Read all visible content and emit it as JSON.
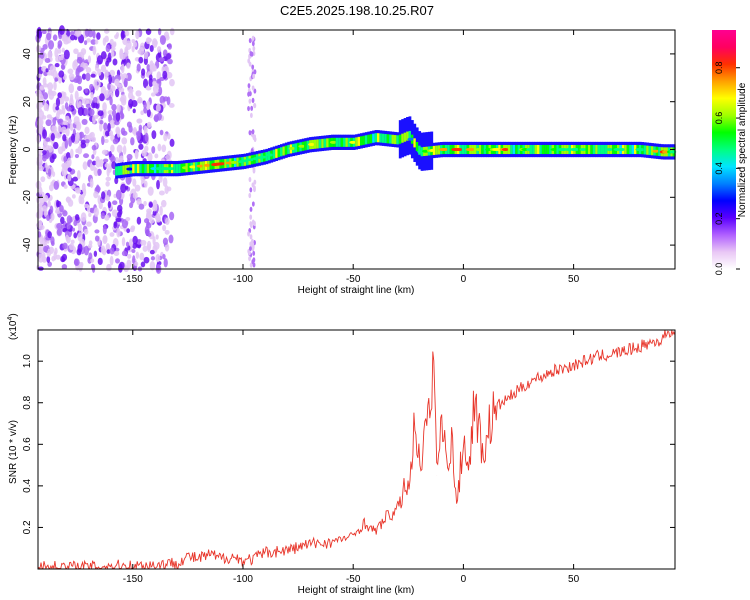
{
  "title": "C2E5.2025.198.10.25.R07",
  "colorbar": {
    "label": "Normalized spectral amplitude",
    "ticks": [
      0.0,
      0.2,
      0.4,
      0.6,
      0.8
    ],
    "tick_labels": [
      "0.0",
      "0.2",
      "0.4",
      "0.6",
      "0.8"
    ],
    "range": [
      0.0,
      0.95
    ],
    "colors": [
      "#ffffff",
      "#e9c7f5",
      "#b060ff",
      "#5a00ff",
      "#0000ff",
      "#0080ff",
      "#00e5ff",
      "#00ff80",
      "#00ff00",
      "#a0ff00",
      "#ffff00",
      "#ffa000",
      "#ff3000",
      "#ff0060",
      "#ff0090"
    ]
  },
  "chart_data": [
    {
      "type": "heatmap",
      "title": "C2E5.2025.198.10.25.R07",
      "xlabel": "Height of straight line (km)",
      "ylabel": "Frequency (Hz)",
      "xlim": [
        -193,
        96
      ],
      "ylim": [
        -50,
        50
      ],
      "x_ticks": [
        -150,
        -100,
        -50,
        0,
        50
      ],
      "x_tick_labels": [
        "-150",
        "-100",
        "-50",
        "0",
        "50"
      ],
      "y_ticks": [
        -40,
        -20,
        0,
        20,
        40
      ],
      "y_tick_labels": [
        "-40",
        "-20",
        "0",
        "20",
        "40"
      ],
      "ridge": {
        "description_source": "dominant frequency band (Hz) vs height (km)",
        "x": [
          -158,
          -150,
          -140,
          -130,
          -120,
          -110,
          -100,
          -90,
          -80,
          -70,
          -60,
          -50,
          -40,
          -30,
          -25,
          -20,
          -10,
          0,
          10,
          20,
          30,
          40,
          50,
          60,
          70,
          80,
          90,
          95
        ],
        "y": [
          -9,
          -8,
          -8,
          -8,
          -7,
          -6,
          -5,
          -3,
          0,
          2,
          3,
          3,
          5,
          4,
          6,
          -1,
          0,
          0,
          0,
          0,
          0,
          0,
          0,
          0,
          0,
          0,
          -1,
          -1
        ],
        "peak_amplitude": [
          0.15,
          0.3,
          0.45,
          0.55,
          0.75,
          0.9,
          0.5,
          0.5,
          0.6,
          0.7,
          0.6,
          0.75,
          0.5,
          0.4,
          0.3,
          0.5,
          0.8,
          0.9,
          0.55,
          0.85,
          0.5,
          0.55,
          0.5,
          0.55,
          0.5,
          0.5,
          0.9,
          0.5
        ]
      },
      "noise_region_x": [
        -193,
        -135
      ],
      "noise_column_x": -96
    },
    {
      "type": "line",
      "xlabel": "Height of straight line (km)",
      "ylabel": "SNR (10 * v/v)",
      "y_exponent": "(x10",
      "y_exponent_power": "4",
      "y_exponent_close": ")",
      "xlim": [
        -193,
        96
      ],
      "ylim": [
        0,
        1.15
      ],
      "x_ticks": [
        -150,
        -100,
        -50,
        0,
        50
      ],
      "x_tick_labels": [
        "-150",
        "-100",
        "-50",
        "0",
        "50"
      ],
      "y_ticks": [
        0.2,
        0.4,
        0.6,
        0.8,
        1.0
      ],
      "y_tick_labels": [
        "0.2",
        "0.4",
        "0.6",
        "0.8",
        "1.0"
      ],
      "series": [
        {
          "color": "#e8362b",
          "x": [
            -193,
            -180,
            -170,
            -160,
            -150,
            -140,
            -130,
            -125,
            -120,
            -115,
            -110,
            -105,
            -100,
            -95,
            -90,
            -80,
            -70,
            -60,
            -50,
            -45,
            -40,
            -35,
            -30,
            -28,
            -25,
            -23,
            -22,
            -20,
            -18,
            -15,
            -13,
            -12,
            -10,
            -8,
            -5,
            -3,
            0,
            3,
            5,
            8,
            10,
            12,
            15,
            20,
            25,
            30,
            40,
            50,
            60,
            70,
            80,
            85,
            90,
            93,
            96
          ],
          "y": [
            0.01,
            0.01,
            0.01,
            0.015,
            0.015,
            0.02,
            0.03,
            0.06,
            0.05,
            0.07,
            0.05,
            0.06,
            0.04,
            0.05,
            0.08,
            0.09,
            0.12,
            0.13,
            0.16,
            0.22,
            0.18,
            0.25,
            0.28,
            0.35,
            0.42,
            0.55,
            0.75,
            0.5,
            0.62,
            0.75,
            1.02,
            0.45,
            0.7,
            0.55,
            0.6,
            0.3,
            0.62,
            0.5,
            0.85,
            0.58,
            0.6,
            0.7,
            0.78,
            0.82,
            0.86,
            0.9,
            0.95,
            0.98,
            1.02,
            1.04,
            1.07,
            1.09,
            1.1,
            1.15,
            1.12
          ]
        }
      ]
    }
  ]
}
